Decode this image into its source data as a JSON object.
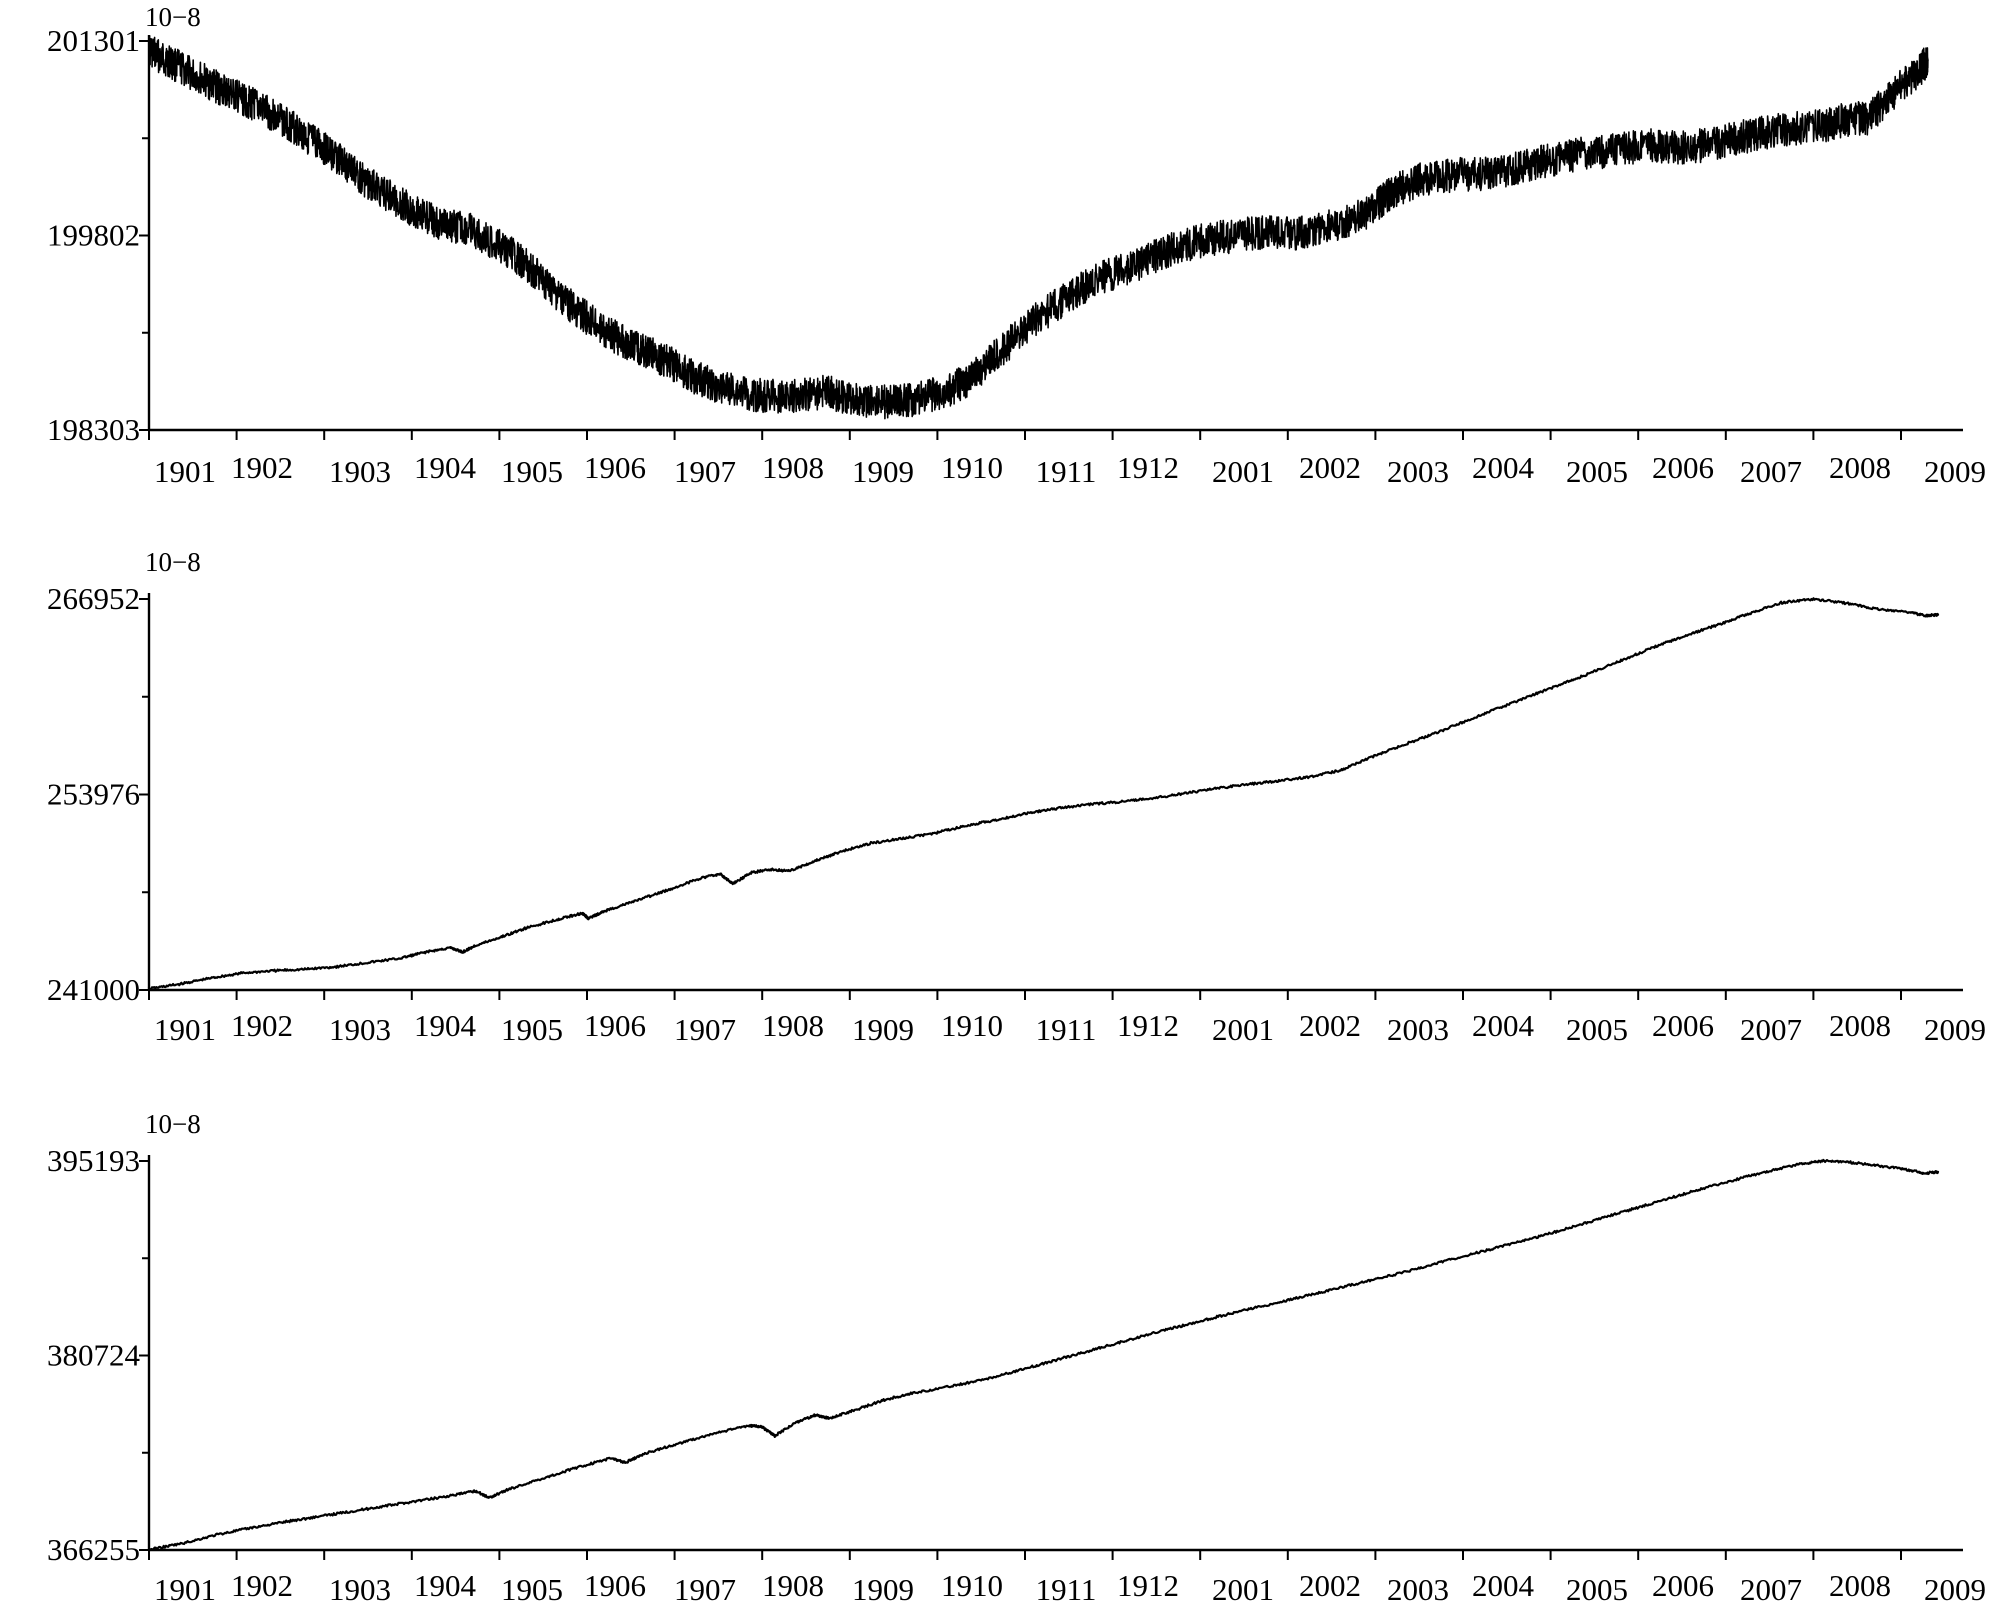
{
  "chart_data": [
    {
      "type": "line",
      "scale_label": "10−8",
      "x_tick_labels": [
        "1901",
        "1902",
        "1903",
        "1904",
        "1905",
        "1906",
        "1907",
        "1908",
        "1909",
        "1910",
        "1911",
        "1912",
        "2001",
        "2002",
        "2003",
        "2004",
        "2005",
        "2006",
        "2007",
        "2008",
        "2009"
      ],
      "y_tick_labels": [
        "201301",
        "199802",
        "198303"
      ],
      "ylim": [
        198303,
        201301
      ],
      "noise": "high",
      "series": [
        {
          "points": [
            [
              0,
              201230
            ],
            [
              0.3,
              201120
            ],
            [
              0.7,
              200980
            ],
            [
              1.0,
              200880
            ],
            [
              1.3,
              200790
            ],
            [
              1.7,
              200640
            ],
            [
              2.0,
              200500
            ],
            [
              2.3,
              200360
            ],
            [
              2.6,
              200200
            ],
            [
              3.0,
              200040
            ],
            [
              3.4,
              199900
            ],
            [
              3.8,
              199840
            ],
            [
              4.2,
              199700
            ],
            [
              4.5,
              199550
            ],
            [
              4.8,
              199350
            ],
            [
              5.1,
              199200
            ],
            [
              5.5,
              199020
            ],
            [
              5.8,
              198920
            ],
            [
              6.1,
              198840
            ],
            [
              6.4,
              198720
            ],
            [
              6.8,
              198620
            ],
            [
              7.2,
              198570
            ],
            [
              7.6,
              198560
            ],
            [
              8.0,
              198600
            ],
            [
              8.3,
              198530
            ],
            [
              8.7,
              198520
            ],
            [
              9.0,
              198530
            ],
            [
              9.4,
              198600
            ],
            [
              9.7,
              198700
            ],
            [
              10.0,
              198880
            ],
            [
              10.4,
              199120
            ],
            [
              10.8,
              199310
            ],
            [
              11.2,
              199470
            ],
            [
              11.6,
              199560
            ],
            [
              12.0,
              199680
            ],
            [
              12.4,
              199760
            ],
            [
              12.8,
              199800
            ],
            [
              13.2,
              199830
            ],
            [
              13.6,
              199820
            ],
            [
              14.0,
              199880
            ],
            [
              14.4,
              199980
            ],
            [
              14.7,
              200150
            ],
            [
              15.0,
              200230
            ],
            [
              15.4,
              200270
            ],
            [
              15.8,
              200280
            ],
            [
              16.2,
              200330
            ],
            [
              16.5,
              200380
            ],
            [
              16.9,
              200430
            ],
            [
              17.3,
              200460
            ],
            [
              17.7,
              200500
            ],
            [
              18.0,
              200480
            ],
            [
              18.4,
              200500
            ],
            [
              18.8,
              200560
            ],
            [
              19.2,
              200610
            ],
            [
              19.7,
              200640
            ],
            [
              20.0,
              200690
            ],
            [
              20.3,
              200710
            ],
            [
              20.6,
              200900
            ],
            [
              20.9,
              201080
            ],
            [
              21.0,
              201150
            ]
          ]
        }
      ]
    },
    {
      "type": "line",
      "scale_label": "10−8",
      "x_tick_labels": [
        "1901",
        "1902",
        "1903",
        "1904",
        "1905",
        "1906",
        "1907",
        "1908",
        "1909",
        "1910",
        "1911",
        "1912",
        "2001",
        "2002",
        "2003",
        "2004",
        "2005",
        "2006",
        "2007",
        "2008",
        "2009"
      ],
      "y_tick_labels": [
        "266952",
        "253976",
        "241000"
      ],
      "ylim": [
        241000,
        266952
      ],
      "noise": "low",
      "series": [
        {
          "points": [
            [
              0,
              241080
            ],
            [
              0.5,
              241400
            ],
            [
              1.0,
              241800
            ],
            [
              1.5,
              242130
            ],
            [
              2.0,
              242280
            ],
            [
              2.5,
              242380
            ],
            [
              3.0,
              242550
            ],
            [
              3.5,
              242830
            ],
            [
              4.0,
              243100
            ],
            [
              4.4,
              243510
            ],
            [
              4.8,
              243800
            ],
            [
              5.0,
              243520
            ],
            [
              5.2,
              243950
            ],
            [
              5.6,
              244500
            ],
            [
              6.0,
              245100
            ],
            [
              6.5,
              245680
            ],
            [
              6.9,
              246100
            ],
            [
              7.0,
              245750
            ],
            [
              7.3,
              246300
            ],
            [
              7.8,
              246980
            ],
            [
              8.3,
              247680
            ],
            [
              8.8,
              248450
            ],
            [
              9.1,
              248700
            ],
            [
              9.3,
              248050
            ],
            [
              9.6,
              248800
            ],
            [
              9.9,
              249000
            ],
            [
              10.2,
              248900
            ],
            [
              10.6,
              249550
            ],
            [
              11.0,
              250150
            ],
            [
              11.5,
              250750
            ],
            [
              12.0,
              251050
            ],
            [
              12.5,
              251400
            ],
            [
              13.0,
              251880
            ],
            [
              13.5,
              252300
            ],
            [
              14.0,
              252750
            ],
            [
              14.5,
              253080
            ],
            [
              15.0,
              253330
            ],
            [
              15.5,
              253500
            ],
            [
              16.0,
              253730
            ],
            [
              16.5,
              254050
            ],
            [
              17.0,
              254380
            ],
            [
              17.5,
              254650
            ],
            [
              18.0,
              254880
            ],
            [
              18.5,
              255150
            ],
            [
              19.0,
              255600
            ],
            [
              19.5,
              256500
            ],
            [
              20.0,
              257300
            ],
            [
              20.5,
              258050
            ],
            [
              21.0,
              258900
            ],
            [
              21.5,
              259700
            ],
            [
              22.0,
              260500
            ],
            [
              22.5,
              261300
            ],
            [
              23.0,
              262100
            ],
            [
              23.5,
              262950
            ],
            [
              24.0,
              263800
            ],
            [
              24.5,
              264550
            ],
            [
              25.0,
              265250
            ],
            [
              25.5,
              266000
            ],
            [
              26.0,
              266700
            ],
            [
              26.5,
              266950
            ],
            [
              27.0,
              266700
            ],
            [
              27.5,
              266300
            ],
            [
              28.0,
              266100
            ],
            [
              28.3,
              265850
            ],
            [
              28.5,
              265900
            ]
          ]
        }
      ]
    },
    {
      "type": "line",
      "scale_label": "10−8",
      "x_tick_labels": [
        "1901",
        "1902",
        "1903",
        "1904",
        "1905",
        "1906",
        "1907",
        "1908",
        "1909",
        "1910",
        "1911",
        "1912",
        "2001",
        "2002",
        "2003",
        "2004",
        "2005",
        "2006",
        "2007",
        "2008",
        "2009"
      ],
      "y_tick_labels": [
        "395193",
        "380724",
        "366255"
      ],
      "ylim": [
        366255,
        395193
      ],
      "noise": "low",
      "series": [
        {
          "points": [
            [
              0,
              366280
            ],
            [
              0.5,
              366750
            ],
            [
              1.0,
              367400
            ],
            [
              1.5,
              367900
            ],
            [
              2.0,
              368350
            ],
            [
              2.5,
              368750
            ],
            [
              3.0,
              369150
            ],
            [
              3.5,
              369550
            ],
            [
              4.0,
              369950
            ],
            [
              4.5,
              370350
            ],
            [
              4.8,
              370650
            ],
            [
              5.0,
              370150
            ],
            [
              5.3,
              370800
            ],
            [
              5.8,
              371600
            ],
            [
              6.3,
              372400
            ],
            [
              6.8,
              373100
            ],
            [
              7.0,
              372750
            ],
            [
              7.3,
              373450
            ],
            [
              7.8,
              374200
            ],
            [
              8.3,
              374900
            ],
            [
              8.8,
              375500
            ],
            [
              9.0,
              375450
            ],
            [
              9.2,
              374750
            ],
            [
              9.5,
              375700
            ],
            [
              9.8,
              376300
            ],
            [
              10.0,
              376050
            ],
            [
              10.4,
              376700
            ],
            [
              10.8,
              377400
            ],
            [
              11.2,
              377900
            ],
            [
              11.7,
              378350
            ],
            [
              12.2,
              378850
            ],
            [
              12.7,
              379500
            ],
            [
              13.2,
              380200
            ],
            [
              13.7,
              380900
            ],
            [
              14.2,
              381600
            ],
            [
              14.7,
              382300
            ],
            [
              15.2,
              382950
            ],
            [
              15.7,
              383600
            ],
            [
              16.2,
              384200
            ],
            [
              16.7,
              384800
            ],
            [
              17.2,
              385400
            ],
            [
              17.7,
              386000
            ],
            [
              18.2,
              386600
            ],
            [
              18.7,
              387250
            ],
            [
              19.2,
              387950
            ],
            [
              19.7,
              388600
            ],
            [
              20.2,
              389250
            ],
            [
              20.7,
              389950
            ],
            [
              21.2,
              390700
            ],
            [
              21.7,
              391450
            ],
            [
              22.2,
              392200
            ],
            [
              22.7,
              392950
            ],
            [
              23.2,
              393650
            ],
            [
              23.7,
              394300
            ],
            [
              24.2,
              394900
            ],
            [
              24.6,
              395200
            ],
            [
              25.0,
              395100
            ],
            [
              25.4,
              394850
            ],
            [
              25.8,
              394600
            ],
            [
              26.1,
              394280
            ],
            [
              26.3,
              394380
            ]
          ]
        }
      ]
    }
  ]
}
